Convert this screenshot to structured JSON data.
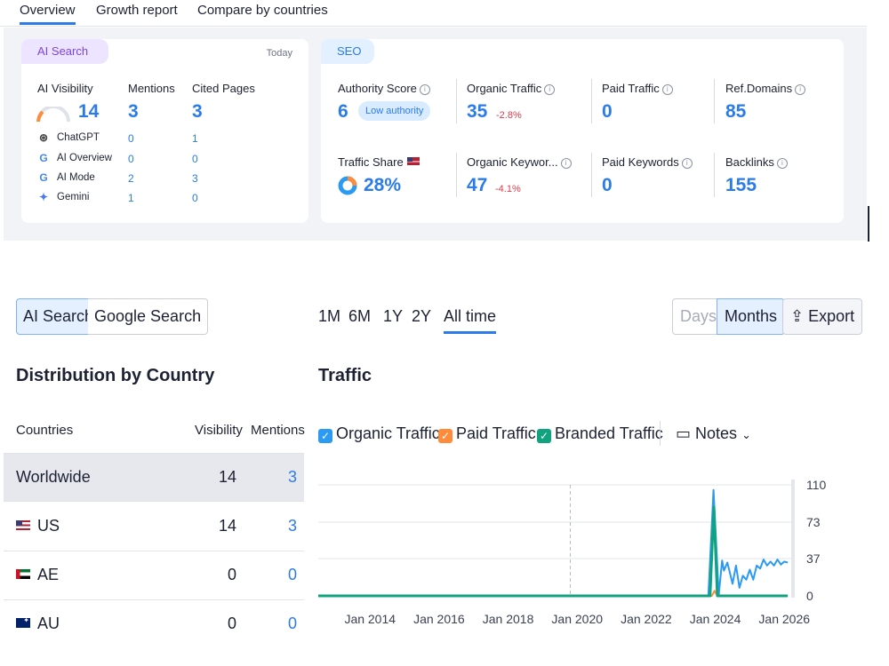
{
  "nav": {
    "tabs": [
      "Overview",
      "Growth report",
      "Compare by countries"
    ]
  },
  "ai_search": {
    "chip": "AI Search",
    "date": "Today",
    "headers": {
      "visibility": "AI Visibility",
      "mentions": "Mentions",
      "cited": "Cited Pages"
    },
    "totals": {
      "visibility": "14",
      "mentions": "3",
      "cited": "3"
    },
    "rows": [
      {
        "name": "ChatGPT",
        "mentions": "0",
        "cited": "1",
        "icon": "chatgpt-icon"
      },
      {
        "name": "AI Overview",
        "mentions": "0",
        "cited": "0",
        "icon": "google-icon"
      },
      {
        "name": "AI Mode",
        "mentions": "2",
        "cited": "3",
        "icon": "google-icon"
      },
      {
        "name": "Gemini",
        "mentions": "1",
        "cited": "0",
        "icon": "gemini-icon"
      }
    ]
  },
  "seo": {
    "chip": "SEO",
    "authority": {
      "label": "Authority Score",
      "value": "6",
      "badge": "Low authority"
    },
    "organic_traffic": {
      "label": "Organic Traffic",
      "value": "35",
      "delta": "-2.8%"
    },
    "paid_traffic": {
      "label": "Paid Traffic",
      "value": "0"
    },
    "ref_domains": {
      "label": "Ref.Domains",
      "value": "85"
    },
    "traffic_share": {
      "label": "Traffic Share",
      "value": "28%"
    },
    "organic_keywords": {
      "label": "Organic Keywor...",
      "value": "47",
      "delta": "-4.1%"
    },
    "paid_keywords": {
      "label": "Paid Keywords",
      "value": "0"
    },
    "backlinks": {
      "label": "Backlinks",
      "value": "155"
    }
  },
  "controls": {
    "search_toggle": [
      "AI Search",
      "Google Search"
    ],
    "periods": [
      "1M",
      "6M",
      "1Y",
      "2Y",
      "All time"
    ],
    "granularity": [
      "Days",
      "Months"
    ],
    "export": "Export"
  },
  "distribution": {
    "title": "Distribution by Country",
    "headers": [
      "Countries",
      "Visibility",
      "Mentions"
    ],
    "rows": [
      {
        "country": "Worldwide",
        "visibility": "14",
        "mentions": "3",
        "flag": ""
      },
      {
        "country": "US",
        "visibility": "14",
        "mentions": "3",
        "flag": "us"
      },
      {
        "country": "AE",
        "visibility": "0",
        "mentions": "0",
        "flag": "ae"
      },
      {
        "country": "AU",
        "visibility": "0",
        "mentions": "0",
        "flag": "au"
      }
    ]
  },
  "traffic": {
    "title": "Traffic",
    "legend": [
      {
        "label": "Organic Traffic",
        "color": "#2b9af3"
      },
      {
        "label": "Paid Traffic",
        "color": "#ff8c3a"
      },
      {
        "label": "Branded Traffic",
        "color": "#11a37f"
      }
    ],
    "notes": "Notes"
  },
  "chart_data": {
    "type": "line",
    "x_ticks": [
      "Jan 2014",
      "Jan 2016",
      "Jan 2018",
      "Jan 2020",
      "Jan 2022",
      "Jan 2024",
      "Jan 2026"
    ],
    "y_ticks": [
      "110",
      "73",
      "37",
      "0"
    ],
    "ylim": [
      0,
      110
    ],
    "xlim": [
      2012.5,
      2026.2
    ],
    "series": [
      {
        "name": "Organic Traffic",
        "color": "#2b9af3",
        "x": [
          2012.5,
          2023.8,
          2023.95,
          2024.1,
          2024.2,
          2024.25,
          2024.35,
          2024.5,
          2024.6,
          2024.7,
          2024.8,
          2024.9,
          2025.0,
          2025.1,
          2025.2,
          2025.3,
          2025.4,
          2025.5,
          2025.6,
          2025.7,
          2025.8,
          2025.9,
          2026.0,
          2026.1
        ],
        "y": [
          0,
          0,
          105,
          1,
          35,
          25,
          33,
          12,
          30,
          8,
          20,
          16,
          26,
          16,
          30,
          27,
          36,
          30,
          34,
          30,
          36,
          31,
          34,
          33
        ]
      },
      {
        "name": "Paid Traffic",
        "color": "#ff8c3a",
        "x": [
          2012.5,
          2023.9,
          2023.98,
          2024.06,
          2026.1
        ],
        "y": [
          0,
          0,
          5,
          0,
          0
        ]
      },
      {
        "name": "Branded Traffic",
        "color": "#11a37f",
        "x": [
          2012.5,
          2023.85,
          2023.96,
          2024.06,
          2026.1
        ],
        "y": [
          0,
          0,
          88,
          0,
          0
        ]
      }
    ],
    "marker_x": 2019.8
  }
}
